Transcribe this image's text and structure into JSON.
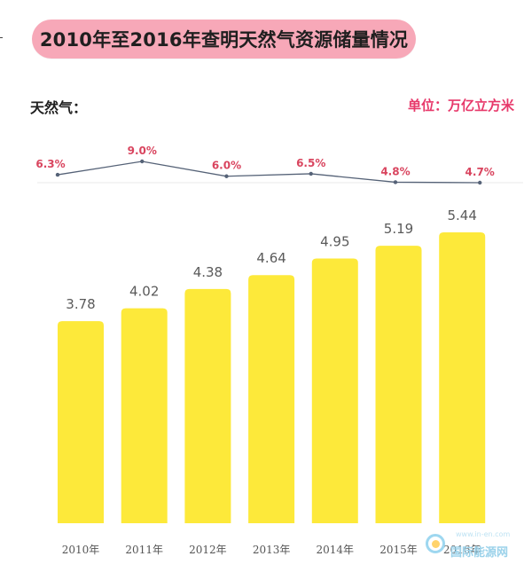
{
  "header": {
    "title": "2010年至2016年查明天然气资源储量情况",
    "left_label": "天然气：",
    "unit_label": "单位：万亿立方米"
  },
  "colors": {
    "bar": "#fde93a",
    "title_bg": "#f7a8b8",
    "pct_label": "#d9455f",
    "line": "#556277",
    "value_label": "#5a5a5a",
    "axis_label": "#555555"
  },
  "chart_data": {
    "type": "bar",
    "categories": [
      "2010年",
      "2011年",
      "2012年",
      "2013年",
      "2014年",
      "2015年",
      "2016年"
    ],
    "series": [
      {
        "values": [
          3.78,
          4.02,
          4.38,
          4.64,
          4.95,
          5.19,
          5.44
        ]
      }
    ],
    "line_series": {
      "values": [
        6.3,
        9.0,
        6.0,
        6.5,
        4.8,
        4.7
      ],
      "labels": [
        "6.3%",
        "9.0%",
        "6.0%",
        "6.5%",
        "4.8%",
        "4.7%"
      ]
    },
    "title": "2010年至2016年查明天然气资源储量情况",
    "xlabel": "",
    "ylabel": "",
    "ylim": [
      0,
      5.44
    ],
    "grid": false
  },
  "watermark": {
    "text": "国际能源网",
    "sub": "www.in-en.com"
  }
}
